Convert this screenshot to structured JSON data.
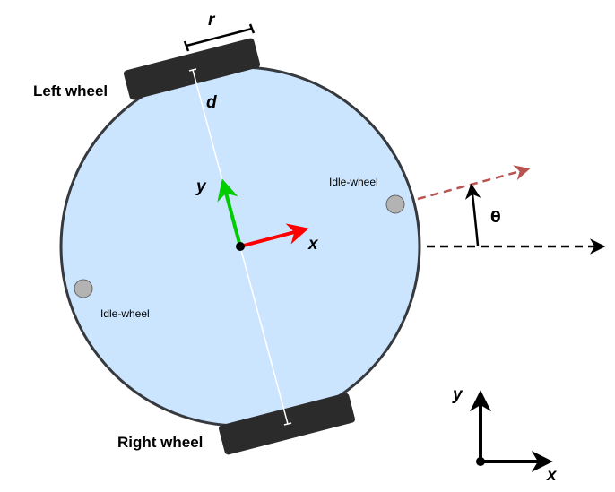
{
  "labels": {
    "left_wheel": "Left wheel",
    "right_wheel": "Right wheel",
    "wheel_radius": "r",
    "wheel_distance": "d",
    "robot_y": "y",
    "robot_x": "x",
    "idle_wheel_right": "Idle-wheel",
    "idle_wheel_left": "Idle-wheel",
    "angle": "θ",
    "world_y": "y",
    "world_x": "x"
  },
  "colors": {
    "body_fill": "#cce5ff",
    "body_stroke": "#36393d",
    "wheel_fill": "#2b2b2b",
    "idle_wheel_fill": "#b3b3b3",
    "x_axis": "#ff0000",
    "y_axis": "#00cc00",
    "heading": "#b85450",
    "black": "#000000"
  }
}
